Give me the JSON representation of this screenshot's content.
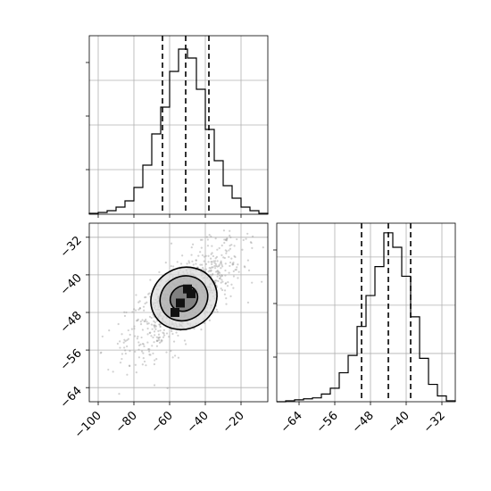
{
  "chart_data": [
    {
      "panel": "top-left",
      "type": "histogram",
      "variable": "x",
      "xlim": [
        -105,
        -5
      ],
      "grid": true,
      "y_ticks_labeled": false,
      "bins": [
        {
          "x0": -105,
          "x1": -100,
          "count": 1
        },
        {
          "x0": -100,
          "x1": -95,
          "count": 2
        },
        {
          "x0": -95,
          "x1": -90,
          "count": 4
        },
        {
          "x0": -90,
          "x1": -85,
          "count": 8
        },
        {
          "x0": -85,
          "x1": -80,
          "count": 15
        },
        {
          "x0": -80,
          "x1": -75,
          "count": 30
        },
        {
          "x0": -75,
          "x1": -70,
          "count": 55
        },
        {
          "x0": -70,
          "x1": -65,
          "count": 90
        },
        {
          "x0": -65,
          "x1": -60,
          "count": 120
        },
        {
          "x0": -60,
          "x1": -55,
          "count": 160
        },
        {
          "x0": -55,
          "x1": -50,
          "count": 185
        },
        {
          "x0": -50,
          "x1": -45,
          "count": 175
        },
        {
          "x0": -45,
          "x1": -40,
          "count": 140
        },
        {
          "x0": -40,
          "x1": -35,
          "count": 95
        },
        {
          "x0": -35,
          "x1": -30,
          "count": 60
        },
        {
          "x0": -30,
          "x1": -25,
          "count": 32
        },
        {
          "x0": -25,
          "x1": -20,
          "count": 18
        },
        {
          "x0": -20,
          "x1": -15,
          "count": 8
        },
        {
          "x0": -15,
          "x1": -10,
          "count": 4
        },
        {
          "x0": -10,
          "x1": -5,
          "count": 1
        }
      ],
      "ylim": [
        0,
        200
      ],
      "quantile_lines": [
        -64,
        -51,
        -38
      ]
    },
    {
      "panel": "bottom-left",
      "type": "scatter-density",
      "x_variable": "x",
      "y_variable": "y",
      "xlim": [
        -105,
        -5
      ],
      "ylim": [
        -67,
        -29
      ],
      "grid": true,
      "x_ticks": [
        -100,
        -80,
        -60,
        -40,
        -20
      ],
      "y_ticks": [
        -32,
        -40,
        -48,
        -56,
        -64
      ],
      "center": [
        -52,
        -45
      ],
      "contours": [
        {
          "level": "outer",
          "rx": 18,
          "ry": 6.8
        },
        {
          "level": "middle",
          "rx": 13,
          "ry": 4.9
        },
        {
          "level": "inner",
          "rx": 7.5,
          "ry": 2.8
        }
      ]
    },
    {
      "panel": "bottom-right",
      "type": "histogram",
      "variable": "y",
      "xlim": [
        -69,
        -29
      ],
      "grid": true,
      "x_ticks": [
        -64,
        -56,
        -48,
        -40,
        -32
      ],
      "y_ticks_labeled": false,
      "bins": [
        {
          "x0": -69,
          "x1": -67,
          "count": 0
        },
        {
          "x0": -67,
          "x1": -65,
          "count": 1
        },
        {
          "x0": -65,
          "x1": -63,
          "count": 2
        },
        {
          "x0": -63,
          "x1": -61,
          "count": 3
        },
        {
          "x0": -61,
          "x1": -59,
          "count": 4
        },
        {
          "x0": -59,
          "x1": -57,
          "count": 8
        },
        {
          "x0": -57,
          "x1": -55,
          "count": 14
        },
        {
          "x0": -55,
          "x1": -53,
          "count": 30
        },
        {
          "x0": -53,
          "x1": -51,
          "count": 48
        },
        {
          "x0": -51,
          "x1": -49,
          "count": 78
        },
        {
          "x0": -49,
          "x1": -47,
          "count": 110
        },
        {
          "x0": -47,
          "x1": -45,
          "count": 140
        },
        {
          "x0": -45,
          "x1": -43,
          "count": 175
        },
        {
          "x0": -43,
          "x1": -41,
          "count": 160
        },
        {
          "x0": -41,
          "x1": -39,
          "count": 130
        },
        {
          "x0": -39,
          "x1": -37,
          "count": 88
        },
        {
          "x0": -37,
          "x1": -35,
          "count": 45
        },
        {
          "x0": -35,
          "x1": -33,
          "count": 18
        },
        {
          "x0": -33,
          "x1": -31,
          "count": 6
        },
        {
          "x0": -31,
          "x1": -29,
          "count": 1
        }
      ],
      "ylim": [
        0,
        185
      ],
      "quantile_lines": [
        -50,
        -44,
        -39
      ]
    }
  ]
}
